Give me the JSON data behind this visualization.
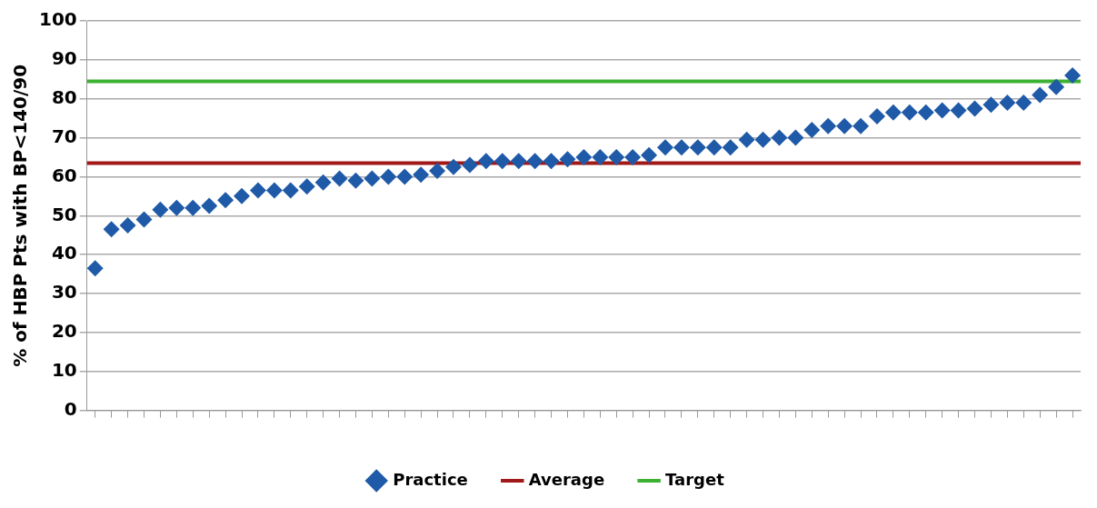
{
  "chart_data": {
    "type": "scatter",
    "ylabel": "% of HBP Pts with BP<140/90",
    "categories": [
      null,
      null,
      null,
      null,
      null,
      null,
      null,
      null,
      null,
      null,
      null,
      null,
      null,
      null,
      null,
      null,
      null,
      null,
      null,
      null,
      null,
      null,
      null,
      null,
      null,
      null,
      null,
      null,
      null,
      null,
      null,
      null,
      null,
      null,
      null,
      null,
      null,
      null,
      null,
      null,
      null,
      null,
      null,
      null,
      null,
      null,
      null,
      null,
      null,
      null,
      null,
      null,
      null,
      null,
      null,
      null,
      null,
      null,
      null,
      null,
      null
    ],
    "series": [
      {
        "name": "Practice",
        "color": "#1f5aa8",
        "values": [
          36.5,
          46.5,
          47.5,
          49,
          51.5,
          52,
          52,
          52.5,
          54,
          55,
          56.5,
          56.5,
          56.5,
          57.5,
          58.5,
          59.5,
          59,
          59.5,
          60,
          60,
          60.5,
          61.5,
          62.5,
          63,
          64,
          64,
          64,
          64,
          64,
          64.5,
          65,
          65,
          65,
          65,
          65.5,
          67.5,
          67.5,
          67.5,
          67.5,
          67.5,
          69.5,
          69.5,
          70,
          70,
          72,
          73,
          73,
          73,
          75.5,
          76.5,
          76.5,
          76.5,
          77,
          77,
          77.5,
          78.5,
          79,
          79,
          81,
          83,
          86
        ]
      }
    ],
    "ref_lines": [
      {
        "axis": "y",
        "value": 63.5,
        "label": "Average",
        "color": "#a01818"
      },
      {
        "axis": "y",
        "value": 84.5,
        "label": "Target",
        "color": "#3cb131"
      }
    ],
    "ylim": [
      0,
      100
    ],
    "yticks": [
      0,
      10,
      20,
      30,
      40,
      50,
      60,
      70,
      80,
      90,
      100
    ],
    "grid": "y",
    "legend": "bottom",
    "marker": "diamond"
  }
}
